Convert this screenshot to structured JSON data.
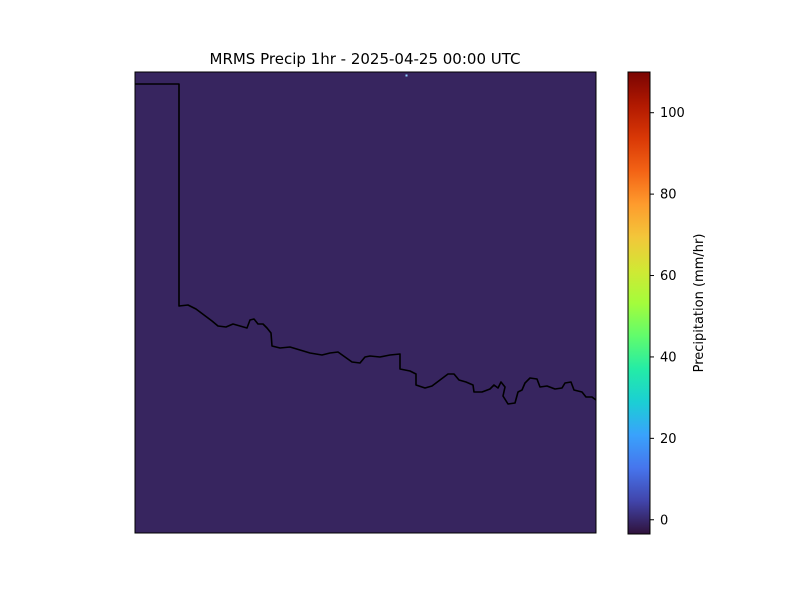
{
  "title": "MRMS Precip 1hr - 2025-04-25 00:00 UTC",
  "map": {
    "background_color": "#37255f",
    "boundary_color": "#000000",
    "speck_color": "#8fd0ff"
  },
  "colorbar": {
    "label": "Precipitation (mm/hr)",
    "range": [
      -3.5,
      110
    ],
    "ticks": [
      {
        "value": 0,
        "label": "0"
      },
      {
        "value": 20,
        "label": "20"
      },
      {
        "value": 40,
        "label": "40"
      },
      {
        "value": 60,
        "label": "60"
      },
      {
        "value": 80,
        "label": "80"
      },
      {
        "value": 100,
        "label": "100"
      }
    ],
    "colormap": "turbo",
    "colormap_stops": [
      "#30123b",
      "#4145ab",
      "#4675ed",
      "#39a2fc",
      "#1bcfd4",
      "#24eca6",
      "#61fc6c",
      "#a4fc3b",
      "#d1e834",
      "#f3c63a",
      "#fe9b2d",
      "#f36315",
      "#d93806",
      "#b11901",
      "#7a0402"
    ]
  }
}
